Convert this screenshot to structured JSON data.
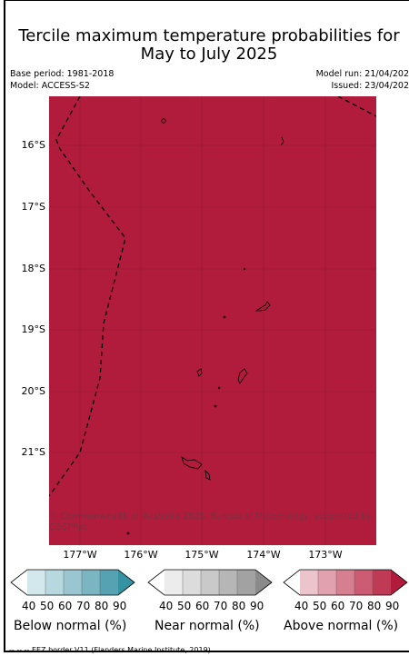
{
  "title_line1": "Tercile maximum temperature probabilities for",
  "title_line2": "May to July 2025",
  "base_period": "Base period: 1981-2018",
  "model": "Model: ACCESS-S2",
  "model_run": "Model run: 21/04/202",
  "issued": "Issued: 23/04/202",
  "map": {
    "fill_color": "#b21c3c",
    "eez_color": "#000000",
    "credit": "© Commonwealth of Australia 2025, Bureau of Meteorology, supported by COSPPac",
    "lat_labels": [
      "16°S",
      "17°S",
      "18°S",
      "19°S",
      "20°S",
      "21°S"
    ],
    "lon_labels": [
      "177°W",
      "176°W",
      "175°W",
      "174°W",
      "173°W"
    ]
  },
  "colorbars": [
    {
      "title": "Below normal (%)",
      "ticks": [
        "40",
        "50",
        "60",
        "70",
        "80",
        "90"
      ],
      "colors": [
        "#ffffff",
        "#d3e8ec",
        "#b8d8df",
        "#99c6d0",
        "#7bb5c2",
        "#57a2b2",
        "#3592a3"
      ]
    },
    {
      "title": "Near normal (%)",
      "ticks": [
        "40",
        "50",
        "60",
        "70",
        "80",
        "90"
      ],
      "colors": [
        "#ffffff",
        "#ececec",
        "#dcdcdc",
        "#c9c9c9",
        "#b6b6b6",
        "#a2a2a2",
        "#8a8a8a"
      ]
    },
    {
      "title": "Above normal (%)",
      "ticks": [
        "40",
        "50",
        "60",
        "70",
        "80",
        "90"
      ],
      "colors": [
        "#ffffff",
        "#ecc4cc",
        "#e1a1ae",
        "#d67f91",
        "#cb5c73",
        "#bf3a55",
        "#b21c3c"
      ]
    }
  ],
  "footer": "-- -- -- EEZ border V11 (Flanders Marine Institute, 2019)."
}
